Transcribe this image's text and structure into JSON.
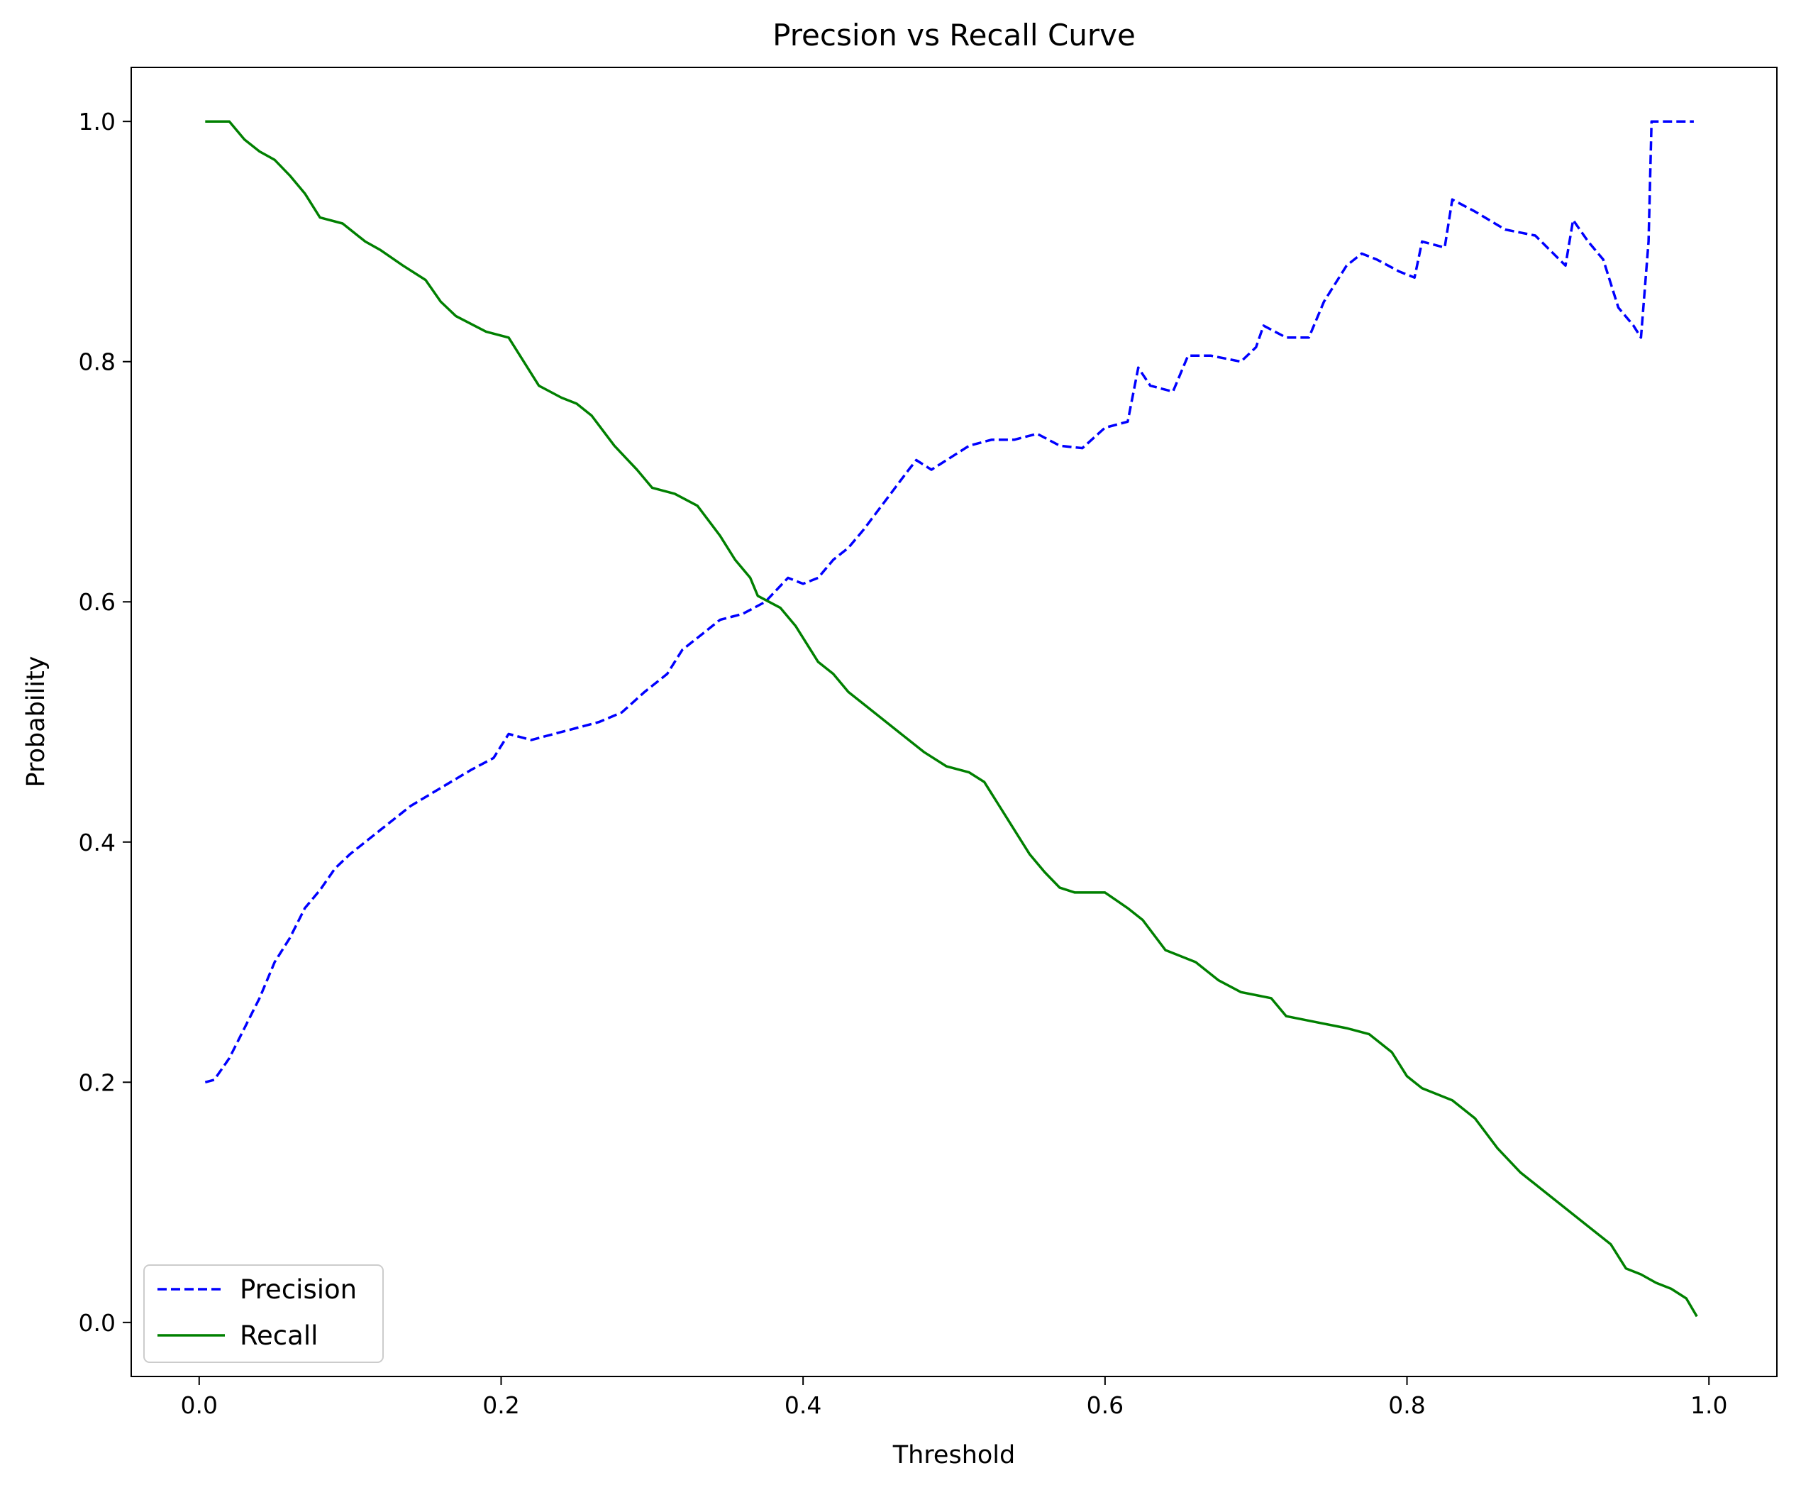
{
  "chart_data": {
    "type": "line",
    "title": "Precsion vs Recall Curve",
    "xlabel": "Threshold",
    "ylabel": "Probability",
    "xlim": [
      -0.045,
      1.045
    ],
    "ylim": [
      -0.045,
      1.045
    ],
    "xticks": [
      0.0,
      0.2,
      0.4,
      0.6,
      0.8,
      1.0
    ],
    "xtick_labels": [
      "0.0",
      "0.2",
      "0.4",
      "0.6",
      "0.8",
      "1.0"
    ],
    "yticks": [
      0.0,
      0.2,
      0.4,
      0.6,
      0.8,
      1.0
    ],
    "ytick_labels": [
      "0.0",
      "0.2",
      "0.4",
      "0.6",
      "0.8",
      "1.0"
    ],
    "grid": false,
    "legend_position": "lower-left",
    "series": [
      {
        "name": "Precision",
        "color": "#0000ff",
        "style": "dashed",
        "points": [
          [
            0.004,
            0.2
          ],
          [
            0.01,
            0.202
          ],
          [
            0.02,
            0.22
          ],
          [
            0.03,
            0.245
          ],
          [
            0.04,
            0.27
          ],
          [
            0.05,
            0.3
          ],
          [
            0.06,
            0.32
          ],
          [
            0.07,
            0.345
          ],
          [
            0.08,
            0.36
          ],
          [
            0.09,
            0.378
          ],
          [
            0.1,
            0.39
          ],
          [
            0.12,
            0.41
          ],
          [
            0.14,
            0.43
          ],
          [
            0.16,
            0.445
          ],
          [
            0.18,
            0.46
          ],
          [
            0.195,
            0.47
          ],
          [
            0.205,
            0.49
          ],
          [
            0.22,
            0.485
          ],
          [
            0.235,
            0.49
          ],
          [
            0.25,
            0.495
          ],
          [
            0.265,
            0.5
          ],
          [
            0.28,
            0.508
          ],
          [
            0.295,
            0.525
          ],
          [
            0.31,
            0.54
          ],
          [
            0.32,
            0.56
          ],
          [
            0.335,
            0.575
          ],
          [
            0.345,
            0.585
          ],
          [
            0.36,
            0.59
          ],
          [
            0.375,
            0.6
          ],
          [
            0.39,
            0.62
          ],
          [
            0.4,
            0.615
          ],
          [
            0.41,
            0.62
          ],
          [
            0.42,
            0.635
          ],
          [
            0.43,
            0.645
          ],
          [
            0.44,
            0.66
          ],
          [
            0.455,
            0.685
          ],
          [
            0.47,
            0.71
          ],
          [
            0.475,
            0.718
          ],
          [
            0.485,
            0.71
          ],
          [
            0.495,
            0.718
          ],
          [
            0.51,
            0.73
          ],
          [
            0.525,
            0.735
          ],
          [
            0.54,
            0.735
          ],
          [
            0.555,
            0.74
          ],
          [
            0.57,
            0.73
          ],
          [
            0.585,
            0.728
          ],
          [
            0.6,
            0.745
          ],
          [
            0.615,
            0.75
          ],
          [
            0.622,
            0.795
          ],
          [
            0.63,
            0.78
          ],
          [
            0.645,
            0.775
          ],
          [
            0.655,
            0.805
          ],
          [
            0.67,
            0.805
          ],
          [
            0.69,
            0.8
          ],
          [
            0.7,
            0.812
          ],
          [
            0.705,
            0.83
          ],
          [
            0.72,
            0.82
          ],
          [
            0.735,
            0.82
          ],
          [
            0.745,
            0.85
          ],
          [
            0.76,
            0.88
          ],
          [
            0.77,
            0.89
          ],
          [
            0.78,
            0.885
          ],
          [
            0.795,
            0.875
          ],
          [
            0.805,
            0.87
          ],
          [
            0.81,
            0.9
          ],
          [
            0.825,
            0.895
          ],
          [
            0.83,
            0.935
          ],
          [
            0.845,
            0.925
          ],
          [
            0.865,
            0.91
          ],
          [
            0.885,
            0.905
          ],
          [
            0.905,
            0.88
          ],
          [
            0.91,
            0.918
          ],
          [
            0.92,
            0.9
          ],
          [
            0.93,
            0.885
          ],
          [
            0.94,
            0.845
          ],
          [
            0.95,
            0.83
          ],
          [
            0.955,
            0.82
          ],
          [
            0.96,
            0.9
          ],
          [
            0.962,
            1.0
          ],
          [
            0.99,
            1.0
          ]
        ]
      },
      {
        "name": "Recall",
        "color": "#008000",
        "style": "solid",
        "points": [
          [
            0.004,
            1.0
          ],
          [
            0.02,
            1.0
          ],
          [
            0.03,
            0.985
          ],
          [
            0.04,
            0.975
          ],
          [
            0.05,
            0.968
          ],
          [
            0.06,
            0.955
          ],
          [
            0.07,
            0.94
          ],
          [
            0.08,
            0.92
          ],
          [
            0.095,
            0.915
          ],
          [
            0.11,
            0.9
          ],
          [
            0.12,
            0.893
          ],
          [
            0.135,
            0.88
          ],
          [
            0.15,
            0.868
          ],
          [
            0.16,
            0.85
          ],
          [
            0.17,
            0.838
          ],
          [
            0.19,
            0.825
          ],
          [
            0.205,
            0.82
          ],
          [
            0.215,
            0.8
          ],
          [
            0.225,
            0.78
          ],
          [
            0.24,
            0.77
          ],
          [
            0.25,
            0.765
          ],
          [
            0.26,
            0.755
          ],
          [
            0.275,
            0.73
          ],
          [
            0.29,
            0.71
          ],
          [
            0.3,
            0.695
          ],
          [
            0.315,
            0.69
          ],
          [
            0.33,
            0.68
          ],
          [
            0.345,
            0.655
          ],
          [
            0.355,
            0.635
          ],
          [
            0.365,
            0.62
          ],
          [
            0.37,
            0.605
          ],
          [
            0.385,
            0.595
          ],
          [
            0.395,
            0.58
          ],
          [
            0.41,
            0.55
          ],
          [
            0.42,
            0.54
          ],
          [
            0.43,
            0.525
          ],
          [
            0.44,
            0.515
          ],
          [
            0.455,
            0.5
          ],
          [
            0.47,
            0.485
          ],
          [
            0.48,
            0.475
          ],
          [
            0.495,
            0.463
          ],
          [
            0.51,
            0.458
          ],
          [
            0.52,
            0.45
          ],
          [
            0.53,
            0.43
          ],
          [
            0.54,
            0.41
          ],
          [
            0.55,
            0.39
          ],
          [
            0.56,
            0.375
          ],
          [
            0.57,
            0.362
          ],
          [
            0.58,
            0.358
          ],
          [
            0.6,
            0.358
          ],
          [
            0.615,
            0.345
          ],
          [
            0.625,
            0.335
          ],
          [
            0.64,
            0.31
          ],
          [
            0.66,
            0.3
          ],
          [
            0.675,
            0.285
          ],
          [
            0.69,
            0.275
          ],
          [
            0.71,
            0.27
          ],
          [
            0.72,
            0.255
          ],
          [
            0.74,
            0.25
          ],
          [
            0.76,
            0.245
          ],
          [
            0.775,
            0.24
          ],
          [
            0.79,
            0.225
          ],
          [
            0.8,
            0.205
          ],
          [
            0.81,
            0.195
          ],
          [
            0.83,
            0.185
          ],
          [
            0.845,
            0.17
          ],
          [
            0.86,
            0.145
          ],
          [
            0.875,
            0.125
          ],
          [
            0.89,
            0.11
          ],
          [
            0.905,
            0.095
          ],
          [
            0.92,
            0.08
          ],
          [
            0.935,
            0.065
          ],
          [
            0.945,
            0.045
          ],
          [
            0.955,
            0.04
          ],
          [
            0.965,
            0.033
          ],
          [
            0.975,
            0.028
          ],
          [
            0.985,
            0.02
          ],
          [
            0.992,
            0.005
          ]
        ]
      }
    ]
  }
}
